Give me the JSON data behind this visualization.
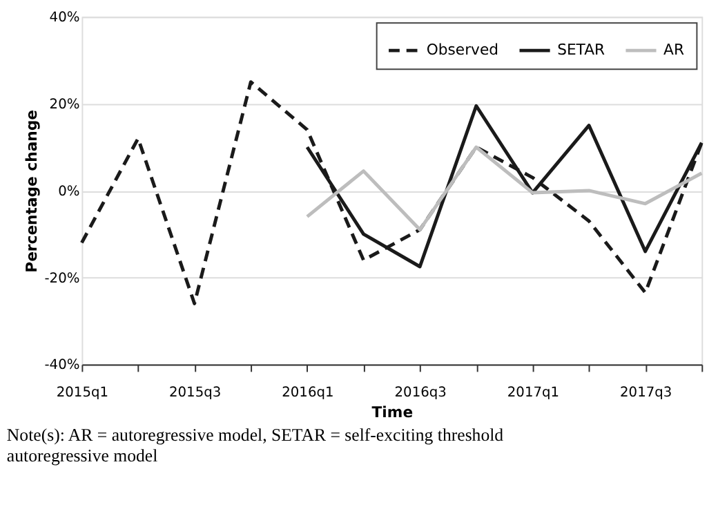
{
  "chart_data": {
    "type": "line",
    "xlabel": "Time",
    "ylabel": "Percentage change",
    "categories": [
      "2015q1",
      null,
      "2015q3",
      null,
      "2016q1",
      null,
      "2016q3",
      null,
      "2017q1",
      null,
      "2017q3",
      null
    ],
    "series": [
      {
        "name": "Observed",
        "color": "#1a1a1a",
        "line_style": "dashed",
        "values": [
          -12,
          12,
          -26,
          25,
          14,
          -16,
          -9,
          10,
          3,
          -7,
          -23.5,
          11
        ]
      },
      {
        "name": "SETAR",
        "color": "#1a1a1a",
        "line_style": "solid",
        "values": [
          null,
          null,
          null,
          null,
          10,
          -10,
          -17.5,
          19.5,
          -0.5,
          15,
          -14,
          11
        ]
      },
      {
        "name": "AR",
        "color": "#bdbdbd",
        "line_style": "solid",
        "values": [
          null,
          null,
          null,
          null,
          -6,
          4.5,
          -9,
          10,
          -0.5,
          0,
          -3,
          4
        ]
      }
    ],
    "ylim": [
      -40,
      40
    ],
    "yticks": [
      {
        "value": -40,
        "label": "-40%"
      },
      {
        "value": -20,
        "label": "-20%"
      },
      {
        "value": 0,
        "label": "0%"
      },
      {
        "value": 20,
        "label": "20%"
      },
      {
        "value": 40,
        "label": "40%"
      }
    ],
    "grid": "y",
    "legend": "top right",
    "marker": "none",
    "annotations": [
      "Note(s): AR = autoregressive model, SETAR = self-exciting threshold autoregressive model"
    ]
  }
}
